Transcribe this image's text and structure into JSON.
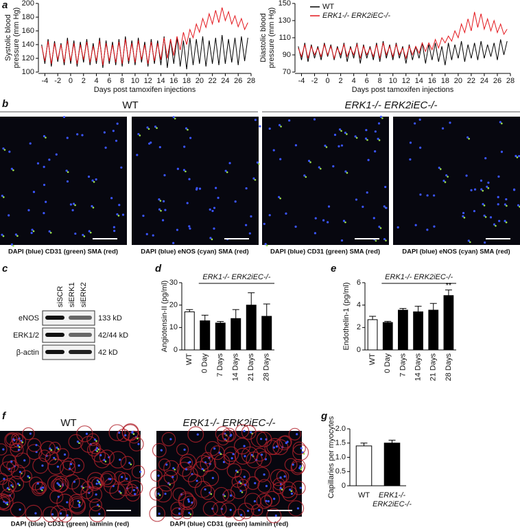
{
  "panel_labels": [
    "a",
    "b",
    "c",
    "d",
    "e",
    "f",
    "g"
  ],
  "panel_b": {
    "groups": [
      "WT",
      "ERK1-/- ERK2iEC-/-"
    ],
    "captions": [
      "DAPI (blue) CD31 (green) SMA (red)",
      "DAPI (blue) eNOS (cyan) SMA (red)",
      "DAPI (blue) CD31 (green) SMA (red)",
      "DAPI (blue) eNOS (cyan) SMA (red)"
    ]
  },
  "panel_c": {
    "lanes": [
      "siSCR",
      "siERK1",
      "siERK2"
    ],
    "blots": [
      {
        "name": "eNOS",
        "size": "133 kD"
      },
      {
        "name": "ERK1/2",
        "size": "42/44 kD"
      },
      {
        "name": "β-actin",
        "size": "42 kD"
      }
    ]
  },
  "panel_f": {
    "titles": [
      "WT",
      "ERK1-/- ERK2iEC-/-"
    ],
    "captions": [
      "DAPI (blue) CD31 (green) laminin (red)",
      "DAPI (blue) CD31 (green) laminin (red)"
    ]
  },
  "chart_data": [
    {
      "type": "line",
      "ylabel": [
        "Systolic blood",
        "pressure (mm Hg)"
      ],
      "xlabel": "Days post tamoxifen injections",
      "x": [
        -4.5,
        -4,
        -3.5,
        -3,
        -2.5,
        -2,
        -1.5,
        -1,
        -0.5,
        0,
        0.5,
        1,
        1.5,
        2,
        2.5,
        3,
        3.5,
        4,
        4.5,
        5,
        5.5,
        6,
        6.5,
        7,
        7.5,
        8,
        8.5,
        9,
        9.5,
        10,
        10.5,
        11,
        11.5,
        12,
        12.5,
        13,
        13.5,
        14,
        14.5,
        15,
        15.5,
        16,
        16.5,
        17,
        17.5,
        18,
        18.5,
        19,
        19.5,
        20,
        20.5,
        21,
        21.5,
        22,
        22.5,
        23,
        23.5,
        24,
        24.5,
        25,
        25.5,
        26,
        26.5,
        27,
        27.5
      ],
      "series": [
        {
          "color": "#000000",
          "values": [
            140,
            112,
            148,
            108,
            145,
            115,
            142,
            110,
            150,
            112,
            146,
            108,
            144,
            114,
            148,
            110,
            142,
            112,
            150,
            106,
            146,
            112,
            144,
            110,
            148,
            108,
            152,
            112,
            146,
            110,
            150,
            114,
            144,
            108,
            148,
            112,
            146,
            110,
            152,
            106,
            148,
            112,
            150,
            108,
            146,
            104,
            150,
            110,
            148,
            112,
            152,
            108,
            146,
            112,
            150,
            110,
            154,
            112,
            148,
            114,
            150,
            110,
            152,
            116,
            150
          ]
        },
        {
          "color": "#e3151b",
          "values": [
            138,
            116,
            145,
            112,
            142,
            118,
            140,
            114,
            146,
            116,
            142,
            112,
            140,
            118,
            144,
            114,
            138,
            116,
            146,
            110,
            142,
            116,
            140,
            114,
            144,
            112,
            148,
            116,
            142,
            114,
            146,
            118,
            140,
            112,
            144,
            116,
            142,
            118,
            150,
            120,
            148,
            124,
            152,
            132,
            158,
            140,
            162,
            150,
            170,
            158,
            178,
            165,
            185,
            170,
            190,
            172,
            194,
            175,
            188,
            170,
            182,
            166,
            178,
            162,
            172
          ]
        }
      ],
      "xlim": [
        -5,
        28
      ],
      "xticks": [
        -4,
        -2,
        0,
        2,
        4,
        6,
        8,
        10,
        12,
        14,
        16,
        18,
        20,
        22,
        24,
        26,
        28
      ],
      "ylim": [
        100,
        200
      ],
      "yticks": [
        100,
        120,
        140,
        160,
        180,
        200
      ]
    },
    {
      "type": "line",
      "ylabel": [
        "Diastolic blood",
        "pressure (mm Hg)"
      ],
      "xlabel": "Days post tamoxifen injections",
      "x": [
        -4.5,
        -4,
        -3.5,
        -3,
        -2.5,
        -2,
        -1.5,
        -1,
        -0.5,
        0,
        0.5,
        1,
        1.5,
        2,
        2.5,
        3,
        3.5,
        4,
        4.5,
        5,
        5.5,
        6,
        6.5,
        7,
        7.5,
        8,
        8.5,
        9,
        9.5,
        10,
        10.5,
        11,
        11.5,
        12,
        12.5,
        13,
        13.5,
        14,
        14.5,
        15,
        15.5,
        16,
        16.5,
        17,
        17.5,
        18,
        18.5,
        19,
        19.5,
        20,
        20.5,
        21,
        21.5,
        22,
        22.5,
        23,
        23.5,
        24,
        24.5,
        25,
        25.5,
        26,
        26.5,
        27,
        27.5
      ],
      "series": [
        {
          "name": "WT",
          "color": "#000000",
          "values": [
            100,
            84,
            104,
            82,
            102,
            86,
            100,
            84,
            104,
            88,
            102,
            84,
            100,
            86,
            104,
            82,
            100,
            86,
            104,
            80,
            102,
            86,
            100,
            84,
            104,
            82,
            106,
            86,
            102,
            84,
            104,
            86,
            100,
            80,
            102,
            84,
            100,
            86,
            104,
            80,
            102,
            84,
            104,
            82,
            100,
            78,
            104,
            84,
            102,
            86,
            106,
            82,
            102,
            86,
            104,
            84,
            106,
            86,
            102,
            88,
            104,
            84,
            108,
            90,
            106
          ]
        },
        {
          "name": "ERK1-/- ERK2iEC-/-",
          "color": "#e3151b",
          "values": [
            98,
            88,
            102,
            86,
            100,
            90,
            98,
            88,
            102,
            90,
            100,
            86,
            98,
            90,
            102,
            88,
            98,
            90,
            102,
            86,
            100,
            90,
            98,
            88,
            102,
            86,
            104,
            90,
            100,
            88,
            102,
            90,
            98,
            86,
            100,
            90,
            100,
            92,
            104,
            94,
            104,
            96,
            108,
            98,
            110,
            104,
            112,
            106,
            118,
            110,
            126,
            116,
            132,
            118,
            140,
            122,
            138,
            120,
            132,
            118,
            130,
            116,
            126,
            114,
            120
          ]
        }
      ],
      "xlim": [
        -5,
        28
      ],
      "xticks": [
        -4,
        -2,
        0,
        2,
        4,
        6,
        8,
        10,
        12,
        14,
        16,
        18,
        20,
        22,
        24,
        26,
        28
      ],
      "ylim": [
        70,
        150
      ],
      "yticks": [
        70,
        90,
        110,
        130,
        150
      ],
      "legend": "upper left"
    },
    {
      "type": "bar",
      "ylabel": "Angiotensin-II (pg/ml)",
      "bracket": "ERK1-/- ERK2iEC-/-",
      "categories": [
        "WT",
        "0 Day",
        "7 Days",
        "14 Days",
        "21 Days",
        "28 Days"
      ],
      "values": [
        17,
        13,
        12,
        14,
        20,
        15
      ],
      "errors": [
        1,
        2.5,
        0.7,
        4,
        5.5,
        5.5
      ],
      "colors": [
        "#ffffff",
        "#000000",
        "#000000",
        "#000000",
        "#000000",
        "#000000"
      ],
      "ylim": [
        0,
        30
      ],
      "yticks": [
        0,
        10,
        20,
        30
      ]
    },
    {
      "type": "bar",
      "ylabel": "Endothelin-1 (pg/ml)",
      "bracket": "ERK1-/- ERK2iEC-/-",
      "categories": [
        "WT",
        "0 Day",
        "7 Days",
        "14 Days",
        "21 Days",
        "28 Days"
      ],
      "values": [
        2.7,
        2.45,
        3.55,
        3.4,
        3.55,
        4.85
      ],
      "errors": [
        0.3,
        0.1,
        0.15,
        0.5,
        0.6,
        0.5
      ],
      "colors": [
        "#ffffff",
        "#000000",
        "#000000",
        "#000000",
        "#000000",
        "#000000"
      ],
      "annotations": [
        null,
        null,
        null,
        null,
        null,
        "**"
      ],
      "ylim": [
        0,
        6
      ],
      "yticks": [
        0,
        2,
        4,
        6
      ]
    },
    {
      "type": "bar",
      "ylabel": "Capillaries per myocytes",
      "categories": [
        "WT",
        "ERK1-/- ERK2iEC-/-"
      ],
      "values": [
        1.4,
        1.5
      ],
      "errors": [
        0.1,
        0.1
      ],
      "colors": [
        "#ffffff",
        "#000000"
      ],
      "ylim": [
        0,
        2
      ],
      "yticks": [
        0,
        0.5,
        {
          "value": 1,
          "label": "1.0"
        },
        1.5,
        {
          "value": 2,
          "label": "2.0"
        }
      ]
    }
  ]
}
